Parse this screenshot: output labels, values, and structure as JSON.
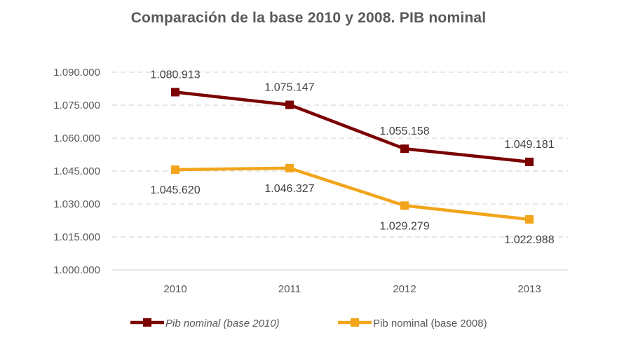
{
  "chart_data": {
    "type": "line",
    "title": "Comparación de la base 2010 y 2008. PIB nominal",
    "xlabel": "",
    "ylabel": "",
    "categories": [
      "2010",
      "2011",
      "2012",
      "2013"
    ],
    "ylim": [
      1000000,
      1090000
    ],
    "yticks": [
      1000000,
      1015000,
      1030000,
      1045000,
      1060000,
      1075000,
      1090000
    ],
    "ytick_labels": [
      "1.000.000",
      "1.015.000",
      "1.030.000",
      "1.045.000",
      "1.060.000",
      "1.075.000",
      "1.090.000"
    ],
    "grid": true,
    "legend_position": "bottom",
    "series": [
      {
        "name": "Pib nominal (base 2010)",
        "color": "#7B0000",
        "italic": true,
        "values": [
          1080913,
          1075147,
          1055158,
          1049181
        ],
        "labels": [
          "1.080.913",
          "1.075.147",
          "1.055.158",
          "1.049.181"
        ],
        "label_position": "above"
      },
      {
        "name": "Pib nominal (base 2008)",
        "color": "#F2A51A",
        "italic": false,
        "values": [
          1045620,
          1046327,
          1029279,
          1022988
        ],
        "labels": [
          "1.045.620",
          "1.046.327",
          "1.029.279",
          "1.022.988"
        ],
        "label_position": "below"
      }
    ]
  }
}
